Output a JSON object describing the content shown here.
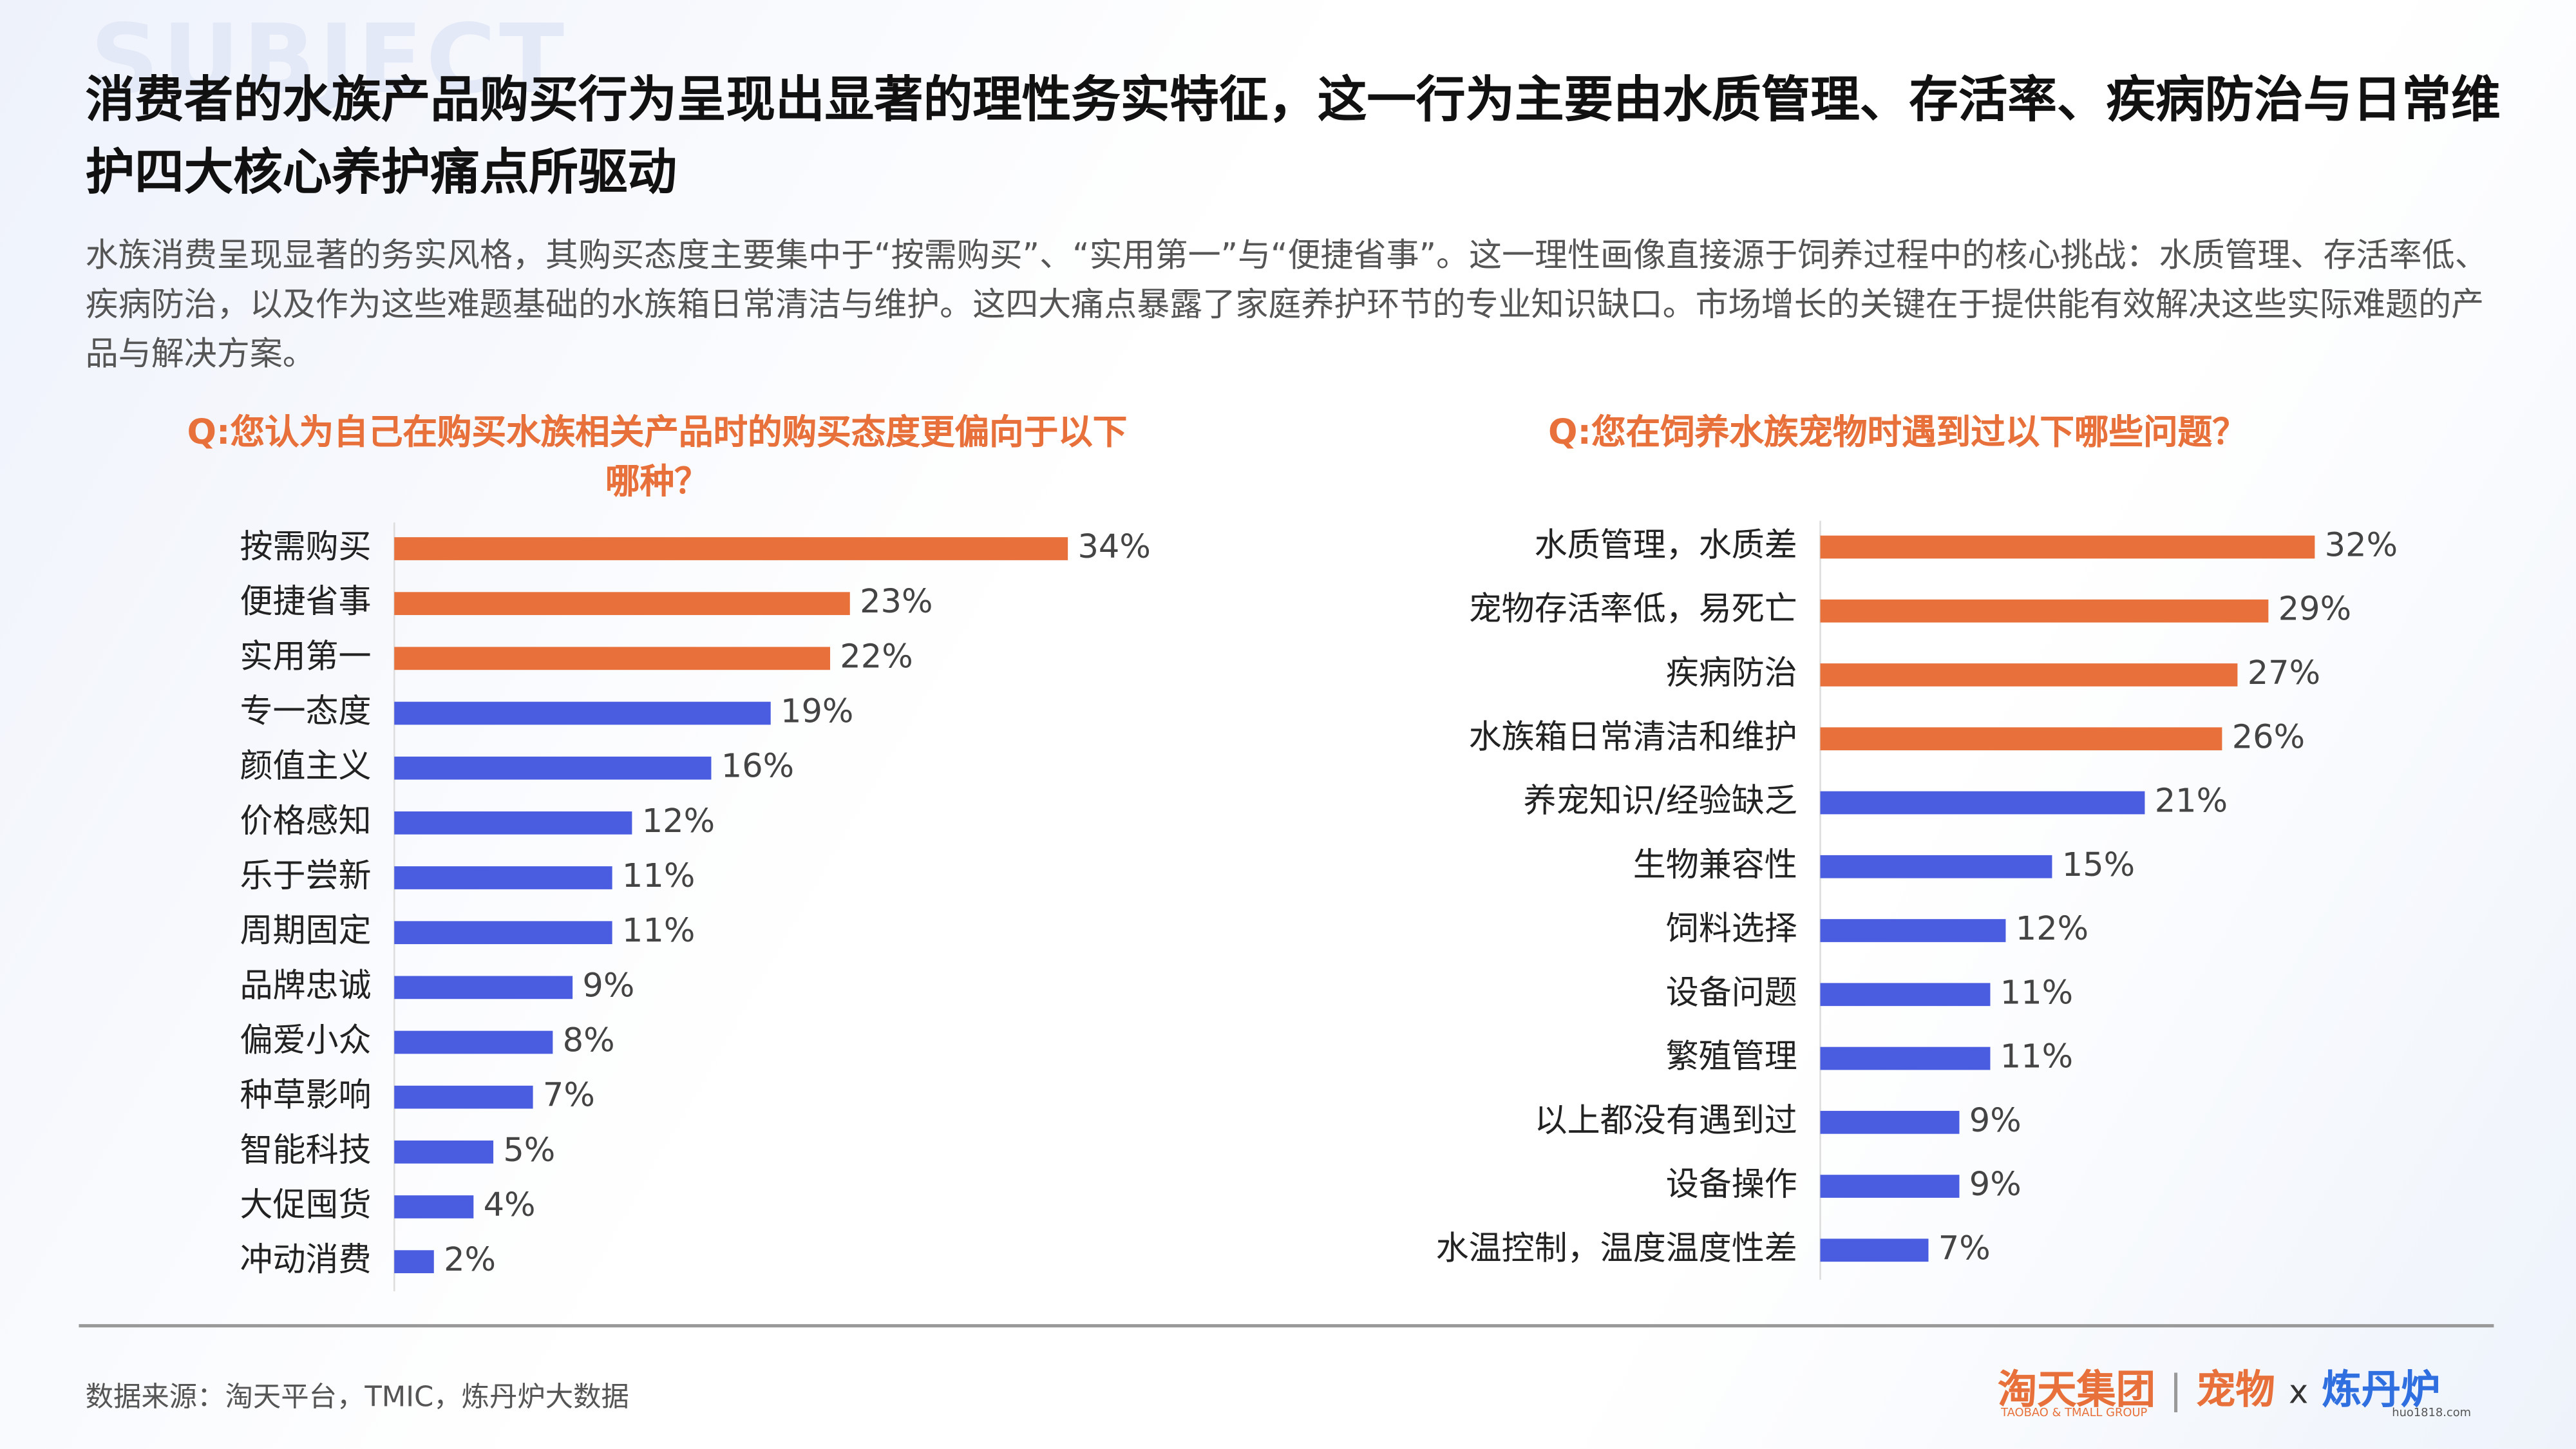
{
  "header": {
    "watermark": "SUBJECT",
    "title": "消费者的水族产品购买行为呈现出显著的理性务实特征，这一行为主要由水质管理、存活率、疾病防治与日常维护四大核心养护痛点所驱动",
    "subtitle": "水族消费呈现显著的务实风格，其购买态度主要集中于“按需购买”、“实用第一”与“便捷省事”。这一理性画像直接源于饲养过程中的核心挑战：水质管理、存活率低、疾病防治，以及作为这些难题基础的水族箱日常清洁与维护。这四大痛点暴露了家庭养护环节的专业知识缺口。市场增长的关键在于提供能有效解决这些实际难题的产品与解决方案。"
  },
  "chart_data": [
    {
      "type": "hbar",
      "title": "Q:您认为自己在购买水族相关产品时的购买态度更偏向于以下哪种？",
      "categories": [
        "按需购买",
        "便捷省事",
        "实用第一",
        "专一态度",
        "颜值主义",
        "价格感知",
        "乐于尝新",
        "周期固定",
        "品牌忠诚",
        "偏爱小众",
        "种草影响",
        "智能科技",
        "大促囤货",
        "冲动消费"
      ],
      "values": [
        34,
        23,
        22,
        19,
        16,
        12,
        11,
        11,
        9,
        8,
        7,
        5,
        4,
        2
      ],
      "value_labels": [
        "34%",
        "23%",
        "22%",
        "19%",
        "16%",
        "12%",
        "11%",
        "11%",
        "9%",
        "8%",
        "7%",
        "5%",
        "4%",
        "2%"
      ],
      "colors": [
        "#e8703a",
        "#e8703a",
        "#e8703a",
        "#4a5ce0",
        "#4a5ce0",
        "#4a5ce0",
        "#4a5ce0",
        "#4a5ce0",
        "#4a5ce0",
        "#4a5ce0",
        "#4a5ce0",
        "#4a5ce0",
        "#4a5ce0",
        "#4a5ce0"
      ]
    },
    {
      "type": "hbar",
      "title": "Q:您在饲养水族宠物时遇到过以下哪些问题？",
      "categories": [
        "水质管理，水质差",
        "宠物存活率低，易死亡",
        "疾病防治",
        "水族箱日常清洁和维护",
        "养宠知识/经验缺乏",
        "生物兼容性",
        "饲料选择",
        "设备问题",
        "繁殖管理",
        "以上都没有遇到过",
        "设备操作",
        "水温控制，温度温度性差"
      ],
      "values": [
        32,
        29,
        27,
        26,
        21,
        15,
        12,
        11,
        11,
        9,
        9,
        7
      ],
      "value_labels": [
        "32%",
        "29%",
        "27%",
        "26%",
        "21%",
        "15%",
        "12%",
        "11%",
        "11%",
        "9%",
        "9%",
        "7%"
      ],
      "colors": [
        "#e8703a",
        "#e8703a",
        "#e8703a",
        "#e8703a",
        "#4a5ce0",
        "#4a5ce0",
        "#4a5ce0",
        "#4a5ce0",
        "#4a5ce0",
        "#4a5ce0",
        "#4a5ce0",
        "#4a5ce0"
      ]
    }
  ],
  "footer": {
    "source": "数据来源：淘天平台，TMIC，炼丹炉大数据",
    "logo1": "淘天集团",
    "logo1_sub": "TAOBAO & TMALL GROUP",
    "logo2": "宠物",
    "x": "x",
    "logo3": "炼丹炉",
    "logo3_sub": "huo1818.com"
  }
}
